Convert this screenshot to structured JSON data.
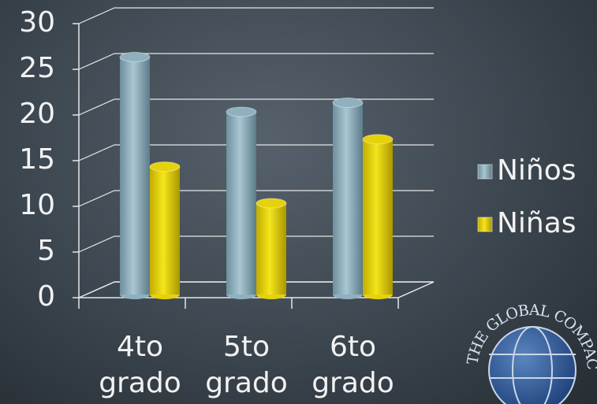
{
  "chart_data": {
    "type": "bar3d",
    "categories": [
      "4to grado",
      "5to grado",
      "6to grado"
    ],
    "series": [
      {
        "name": "Niños",
        "color": "#8fb0bf",
        "values": [
          26,
          20,
          21
        ]
      },
      {
        "name": "Niñas",
        "color": "#e6d20a",
        "values": [
          14,
          10,
          17
        ]
      }
    ],
    "ylim": [
      0,
      30
    ],
    "yticks": [
      0,
      5,
      10,
      15,
      20,
      25,
      30
    ],
    "grid": true,
    "legend": "right",
    "logo_text": "THE GLOBAL COMPACT"
  }
}
